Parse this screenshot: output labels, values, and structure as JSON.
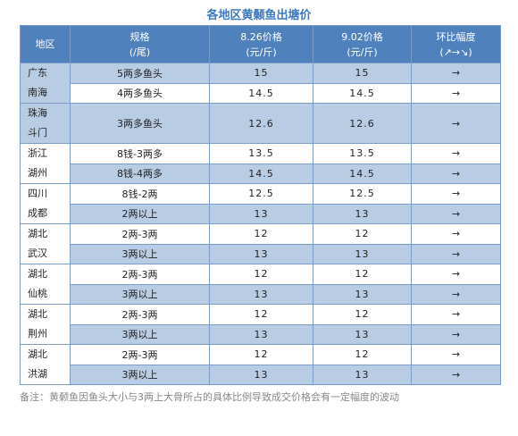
{
  "title": "各地区黄颡鱼出塘价",
  "table": {
    "header": [
      [
        "地区"
      ],
      [
        "规格",
        "(/尾)"
      ],
      [
        "8.26价格",
        "(元/斤)"
      ],
      [
        "9.02价格",
        "(元/斤)"
      ],
      [
        "环比幅度",
        "(↗→↘)"
      ]
    ],
    "regions": [
      {
        "name": [
          "广东",
          "南海"
        ],
        "rows": [
          [
            "5两多鱼头",
            15,
            15,
            "→"
          ],
          [
            "4两多鱼头",
            14.5,
            14.5,
            "→"
          ]
        ]
      },
      {
        "name": [
          "珠海",
          "斗门"
        ],
        "rows": [
          [
            "3两多鱼头",
            12.6,
            12.6,
            "→"
          ]
        ]
      },
      {
        "name": [
          "浙江",
          "湖州"
        ],
        "rows": [
          [
            "8钱-3两多",
            13.5,
            13.5,
            "→"
          ],
          [
            "8钱-4两多",
            14.5,
            14.5,
            "→"
          ]
        ]
      },
      {
        "name": [
          "四川",
          "成都"
        ],
        "rows": [
          [
            "8钱-2两",
            12.5,
            12.5,
            "→"
          ],
          [
            "2两以上",
            13,
            13,
            "→"
          ]
        ]
      },
      {
        "name": [
          "湖北",
          "武汉"
        ],
        "rows": [
          [
            "2两-3两",
            12,
            12,
            "→"
          ],
          [
            "3两以上",
            13,
            13,
            "→"
          ]
        ]
      },
      {
        "name": [
          "湖北",
          "仙桃"
        ],
        "rows": [
          [
            "2两-3两",
            12,
            12,
            "→"
          ],
          [
            "3两以上",
            13,
            13,
            "→"
          ]
        ]
      },
      {
        "name": [
          "湖北",
          "荆州"
        ],
        "rows": [
          [
            "2两-3两",
            12,
            12,
            "→"
          ],
          [
            "3两以上",
            13,
            13,
            "→"
          ]
        ]
      },
      {
        "name": [
          "湖北",
          "洪湖"
        ],
        "rows": [
          [
            "2两-3两",
            12,
            12,
            "→"
          ],
          [
            "3两以上",
            13,
            13,
            "→"
          ]
        ]
      }
    ]
  },
  "note": "备注：黄颡鱼因鱼头大小与3两上大骨所占的具体比例导致成交价格会有一定幅度的波动"
}
